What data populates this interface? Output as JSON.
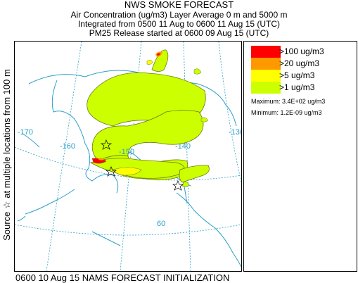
{
  "header": {
    "title": "NWS SMOKE FORECAST",
    "line1": "Air Concentration (ug/m3) Layer Average    0 m and  5000 m",
    "line2": "Integrated from 0500 11 Aug to 0600 11 Aug 15 (UTC)",
    "line3": "PM25 Release started at 0600 09 Aug 15 (UTC)"
  },
  "side_label": "Source ☆ at multiple locations   from   100 m",
  "legend": {
    "items": [
      {
        "label": ">100 ug/m3",
        "color": "#ff0000"
      },
      {
        "label": ">20 ug/m3",
        "color": "#ff9900"
      },
      {
        "label": ">5 ug/m3",
        "color": "#ffff00"
      },
      {
        "label": ">1 ug/m3",
        "color": "#ccff00"
      }
    ],
    "maximum": "Maximum: 3.4E+02 ug/m3",
    "minimum": "Minimum: 1.2E-09 ug/m3"
  },
  "map": {
    "lon_labels": [
      "-170",
      "-160",
      "-150",
      "-140",
      "-130"
    ],
    "lat_labels": [
      "60"
    ],
    "colors": {
      "coast": "#2aa0c8",
      "grid": "#2aa0c8",
      "contour_fill": "#ccff00",
      "contour_line": "#6b7a1a"
    }
  },
  "footer": "0600 10 Aug 15 NAMS FORECAST INITIALIZATION"
}
